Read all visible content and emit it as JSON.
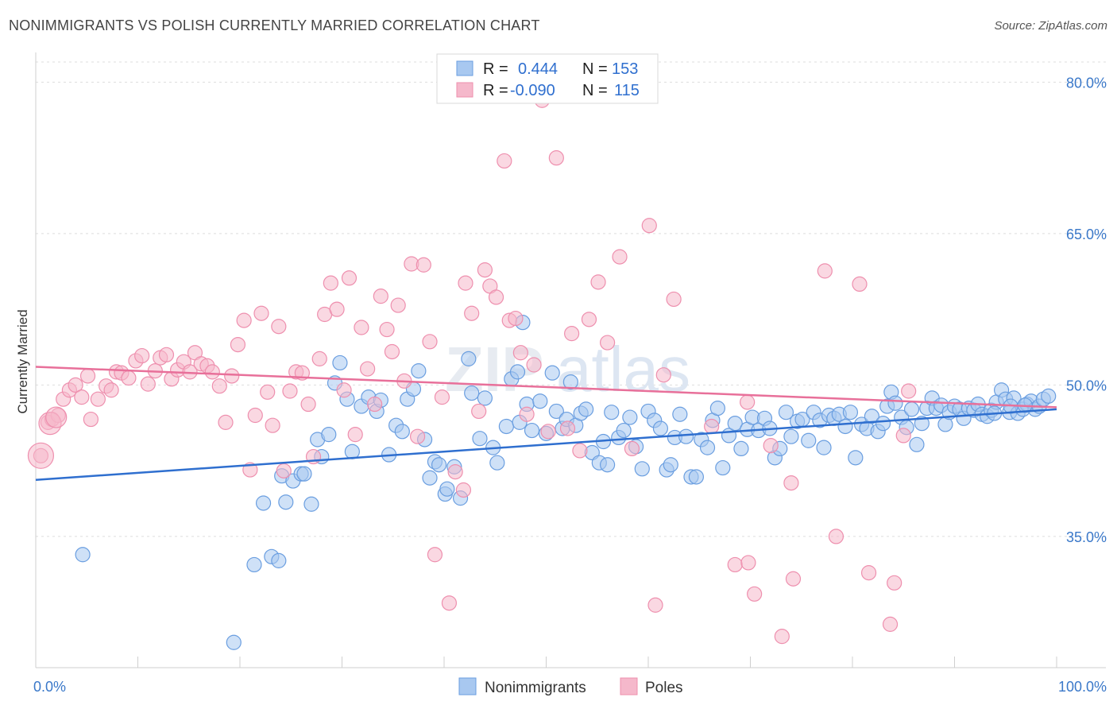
{
  "title": "NONIMMIGRANTS VS POLISH CURRENTLY MARRIED CORRELATION CHART",
  "source": "Source: ZipAtlas.com",
  "watermark": {
    "zip": "ZIP",
    "atlas": "atlas"
  },
  "legend": {
    "rows": [
      {
        "r_label": "R =",
        "r_value": "0.444",
        "n_label": "N =",
        "n_value": "153",
        "color": "#a8c8f0"
      },
      {
        "r_label": "R =",
        "r_value": "-0.090",
        "n_label": "N =",
        "n_value": "115",
        "color": "#f5b8cb"
      }
    ]
  },
  "bottom_legend": [
    {
      "label": "Nonimmigrants",
      "color": "#a8c8f0"
    },
    {
      "label": "Poles",
      "color": "#f5b8cb"
    }
  ],
  "chart_data": {
    "type": "scatter",
    "title": "NONIMMIGRANTS VS POLISH CURRENTLY MARRIED CORRELATION CHART",
    "xlabel": "",
    "ylabel": "Currently Married",
    "xlim": [
      0,
      100
    ],
    "ylim": [
      22,
      82
    ],
    "x_tick_labels": [
      "0.0%",
      "100.0%"
    ],
    "y_ticks": [
      35,
      50,
      65,
      80
    ],
    "y_tick_labels": [
      "35.0%",
      "50.0%",
      "65.0%",
      "80.0%"
    ],
    "grid": true,
    "colors": {
      "nonimmigrants": "#a8c8f0",
      "nonimmigrants_edge": "#6a9ee0",
      "nonimmigrants_line": "#2f6fcf",
      "poles": "#f5b8cb",
      "poles_edge": "#ee8fae",
      "poles_line": "#e8709a"
    },
    "series": [
      {
        "name": "Nonimmigrants",
        "trend": {
          "x": [
            0,
            100
          ],
          "y": [
            40.6,
            47.6
          ]
        },
        "points": [
          [
            4.6,
            33.2
          ],
          [
            19.4,
            24.5
          ],
          [
            21.4,
            32.2
          ],
          [
            22.3,
            38.3
          ],
          [
            23.1,
            33.0
          ],
          [
            23.8,
            32.6
          ],
          [
            24.1,
            41.0
          ],
          [
            24.5,
            38.4
          ],
          [
            25.2,
            40.5
          ],
          [
            26.0,
            41.2
          ],
          [
            26.3,
            41.2
          ],
          [
            27.0,
            38.2
          ],
          [
            27.6,
            44.6
          ],
          [
            28.0,
            42.9
          ],
          [
            28.7,
            45.1
          ],
          [
            29.3,
            50.2
          ],
          [
            29.8,
            52.2
          ],
          [
            30.5,
            48.6
          ],
          [
            31.0,
            43.4
          ],
          [
            31.9,
            47.9
          ],
          [
            32.6,
            48.8
          ],
          [
            33.4,
            47.4
          ],
          [
            33.8,
            48.5
          ],
          [
            34.6,
            43.1
          ],
          [
            35.3,
            46.0
          ],
          [
            35.9,
            45.4
          ],
          [
            36.4,
            48.6
          ],
          [
            37.0,
            49.6
          ],
          [
            37.5,
            51.4
          ],
          [
            38.1,
            44.6
          ],
          [
            38.6,
            40.8
          ],
          [
            39.1,
            42.4
          ],
          [
            39.5,
            42.1
          ],
          [
            40.1,
            39.2
          ],
          [
            40.3,
            39.7
          ],
          [
            41.0,
            41.9
          ],
          [
            41.6,
            38.8
          ],
          [
            42.4,
            52.6
          ],
          [
            42.7,
            49.2
          ],
          [
            43.5,
            44.7
          ],
          [
            44.0,
            48.7
          ],
          [
            44.8,
            43.8
          ],
          [
            45.2,
            42.3
          ],
          [
            46.1,
            45.9
          ],
          [
            46.6,
            50.6
          ],
          [
            47.2,
            51.3
          ],
          [
            47.4,
            46.3
          ],
          [
            47.7,
            56.2
          ],
          [
            48.1,
            48.1
          ],
          [
            48.6,
            45.5
          ],
          [
            49.4,
            48.4
          ],
          [
            50.0,
            45.2
          ],
          [
            50.6,
            51.2
          ],
          [
            51.0,
            47.4
          ],
          [
            51.6,
            45.7
          ],
          [
            52.0,
            46.6
          ],
          [
            52.4,
            50.3
          ],
          [
            52.9,
            46.0
          ],
          [
            53.4,
            47.2
          ],
          [
            53.9,
            47.6
          ],
          [
            54.5,
            43.3
          ],
          [
            55.2,
            42.3
          ],
          [
            55.6,
            44.4
          ],
          [
            56.0,
            42.1
          ],
          [
            56.4,
            47.3
          ],
          [
            57.1,
            44.8
          ],
          [
            57.6,
            45.5
          ],
          [
            58.2,
            46.8
          ],
          [
            58.8,
            43.9
          ],
          [
            59.4,
            41.7
          ],
          [
            60.0,
            47.4
          ],
          [
            60.6,
            46.5
          ],
          [
            61.2,
            45.7
          ],
          [
            61.8,
            41.6
          ],
          [
            62.2,
            42.1
          ],
          [
            62.6,
            44.8
          ],
          [
            63.1,
            47.1
          ],
          [
            63.7,
            44.9
          ],
          [
            64.2,
            40.9
          ],
          [
            64.7,
            40.9
          ],
          [
            65.2,
            44.6
          ],
          [
            65.8,
            43.8
          ],
          [
            66.3,
            46.5
          ],
          [
            66.8,
            47.7
          ],
          [
            67.3,
            41.8
          ],
          [
            67.9,
            45.0
          ],
          [
            68.5,
            46.2
          ],
          [
            69.1,
            43.7
          ],
          [
            69.7,
            45.6
          ],
          [
            70.2,
            46.8
          ],
          [
            70.8,
            45.5
          ],
          [
            71.4,
            46.7
          ],
          [
            71.9,
            45.7
          ],
          [
            72.4,
            42.8
          ],
          [
            72.9,
            43.7
          ],
          [
            73.5,
            47.3
          ],
          [
            74.0,
            44.9
          ],
          [
            74.6,
            46.4
          ],
          [
            75.1,
            46.6
          ],
          [
            75.7,
            44.5
          ],
          [
            76.2,
            47.3
          ],
          [
            76.8,
            46.5
          ],
          [
            77.2,
            43.8
          ],
          [
            77.7,
            47.0
          ],
          [
            78.2,
            46.7
          ],
          [
            78.7,
            47.1
          ],
          [
            79.3,
            45.9
          ],
          [
            79.8,
            47.3
          ],
          [
            80.3,
            42.8
          ],
          [
            80.9,
            46.1
          ],
          [
            81.4,
            45.7
          ],
          [
            81.9,
            46.9
          ],
          [
            82.5,
            45.4
          ],
          [
            83.0,
            46.2
          ],
          [
            83.4,
            47.9
          ],
          [
            83.8,
            49.3
          ],
          [
            84.2,
            48.2
          ],
          [
            84.8,
            46.8
          ],
          [
            85.3,
            45.8
          ],
          [
            85.8,
            47.6
          ],
          [
            86.3,
            44.1
          ],
          [
            86.8,
            46.2
          ],
          [
            87.3,
            47.7
          ],
          [
            87.8,
            48.7
          ],
          [
            88.2,
            47.7
          ],
          [
            88.7,
            48.0
          ],
          [
            89.1,
            46.1
          ],
          [
            89.5,
            47.3
          ],
          [
            90.0,
            47.9
          ],
          [
            90.5,
            47.6
          ],
          [
            90.9,
            46.7
          ],
          [
            91.4,
            47.7
          ],
          [
            91.9,
            47.5
          ],
          [
            92.3,
            48.1
          ],
          [
            92.7,
            47.1
          ],
          [
            93.2,
            46.9
          ],
          [
            93.6,
            47.5
          ],
          [
            94.1,
            48.3
          ],
          [
            94.6,
            49.5
          ],
          [
            95.0,
            48.6
          ],
          [
            95.4,
            47.3
          ],
          [
            95.8,
            48.7
          ],
          [
            96.2,
            47.2
          ],
          [
            96.7,
            47.6
          ],
          [
            97.1,
            48.1
          ],
          [
            97.5,
            48.4
          ],
          [
            97.9,
            47.6
          ],
          [
            98.3,
            47.9
          ],
          [
            98.7,
            48.6
          ],
          [
            99.2,
            48.9
          ],
          [
            96.9,
            48.0
          ],
          [
            95.5,
            47.9
          ],
          [
            93.9,
            47.2
          ]
        ]
      },
      {
        "name": "Poles",
        "trend": {
          "x": [
            0,
            100
          ],
          "y": [
            51.8,
            47.8
          ]
        },
        "points": [
          [
            0.5,
            43.0
          ],
          [
            1.2,
            46.3
          ],
          [
            1.6,
            46.6
          ],
          [
            2.2,
            47.0
          ],
          [
            2.7,
            48.6
          ],
          [
            3.3,
            49.5
          ],
          [
            3.9,
            50.0
          ],
          [
            4.5,
            48.8
          ],
          [
            5.1,
            50.9
          ],
          [
            5.4,
            46.6
          ],
          [
            6.1,
            48.6
          ],
          [
            6.9,
            49.9
          ],
          [
            7.4,
            49.5
          ],
          [
            7.9,
            51.3
          ],
          [
            8.4,
            51.2
          ],
          [
            9.1,
            50.7
          ],
          [
            9.8,
            52.4
          ],
          [
            10.4,
            52.9
          ],
          [
            11.0,
            50.1
          ],
          [
            11.7,
            51.4
          ],
          [
            12.2,
            52.7
          ],
          [
            12.8,
            53.0
          ],
          [
            13.3,
            50.6
          ],
          [
            13.9,
            51.5
          ],
          [
            14.5,
            52.3
          ],
          [
            15.1,
            51.3
          ],
          [
            15.6,
            53.2
          ],
          [
            16.2,
            52.1
          ],
          [
            16.8,
            51.9
          ],
          [
            17.3,
            51.3
          ],
          [
            18.0,
            49.9
          ],
          [
            18.6,
            46.3
          ],
          [
            19.2,
            50.9
          ],
          [
            19.8,
            54.0
          ],
          [
            20.4,
            56.4
          ],
          [
            21.0,
            41.6
          ],
          [
            21.5,
            47.0
          ],
          [
            22.1,
            57.1
          ],
          [
            22.7,
            49.3
          ],
          [
            23.2,
            46.0
          ],
          [
            23.8,
            55.8
          ],
          [
            24.3,
            41.5
          ],
          [
            24.9,
            49.4
          ],
          [
            25.5,
            51.3
          ],
          [
            26.1,
            51.2
          ],
          [
            26.7,
            48.1
          ],
          [
            27.2,
            42.9
          ],
          [
            27.8,
            52.6
          ],
          [
            28.3,
            57.0
          ],
          [
            28.9,
            60.1
          ],
          [
            29.5,
            57.5
          ],
          [
            30.2,
            49.5
          ],
          [
            30.7,
            60.6
          ],
          [
            31.3,
            45.1
          ],
          [
            31.9,
            55.7
          ],
          [
            32.5,
            51.6
          ],
          [
            33.2,
            48.1
          ],
          [
            33.8,
            58.8
          ],
          [
            34.4,
            55.5
          ],
          [
            34.9,
            53.3
          ],
          [
            35.5,
            57.9
          ],
          [
            36.1,
            50.4
          ],
          [
            36.8,
            62.0
          ],
          [
            37.4,
            44.9
          ],
          [
            38.0,
            61.9
          ],
          [
            38.6,
            54.3
          ],
          [
            39.1,
            33.2
          ],
          [
            39.8,
            48.8
          ],
          [
            40.5,
            28.4
          ],
          [
            41.1,
            41.4
          ],
          [
            41.9,
            39.6
          ],
          [
            42.1,
            60.1
          ],
          [
            42.7,
            57.1
          ],
          [
            43.4,
            47.4
          ],
          [
            44.0,
            61.4
          ],
          [
            44.5,
            59.8
          ],
          [
            45.1,
            58.7
          ],
          [
            45.9,
            72.2
          ],
          [
            46.4,
            56.4
          ],
          [
            47.0,
            56.6
          ],
          [
            47.5,
            53.2
          ],
          [
            48.1,
            47.1
          ],
          [
            48.8,
            52.0
          ],
          [
            49.6,
            78.2
          ],
          [
            50.2,
            45.4
          ],
          [
            51.0,
            72.5
          ],
          [
            52.1,
            45.7
          ],
          [
            52.5,
            55.1
          ],
          [
            53.3,
            43.5
          ],
          [
            54.2,
            56.5
          ],
          [
            55.1,
            60.2
          ],
          [
            56.0,
            54.2
          ],
          [
            57.2,
            62.7
          ],
          [
            58.4,
            43.7
          ],
          [
            60.1,
            65.8
          ],
          [
            60.7,
            28.2
          ],
          [
            61.5,
            51.0
          ],
          [
            62.5,
            58.5
          ],
          [
            66.2,
            45.9
          ],
          [
            68.5,
            32.2
          ],
          [
            69.7,
            48.3
          ],
          [
            70.4,
            29.3
          ],
          [
            72.0,
            44.0
          ],
          [
            74.0,
            40.3
          ],
          [
            77.3,
            61.3
          ],
          [
            78.4,
            35.0
          ],
          [
            80.7,
            60.0
          ],
          [
            84.1,
            30.4
          ],
          [
            85.5,
            49.4
          ],
          [
            85.0,
            45.0
          ],
          [
            74.2,
            30.8
          ],
          [
            73.1,
            25.1
          ],
          [
            81.6,
            31.4
          ],
          [
            83.7,
            26.3
          ],
          [
            69.8,
            32.4
          ]
        ]
      }
    ]
  }
}
